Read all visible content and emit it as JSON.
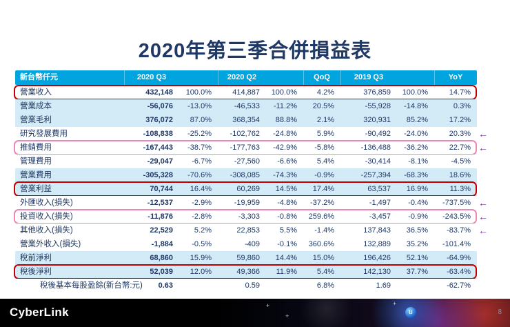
{
  "title": "2020年第三季合併損益表",
  "table": {
    "headers": [
      "新台幣仟元",
      "2020 Q3",
      "",
      "2020 Q2",
      "",
      "QoQ",
      "2019 Q3",
      "",
      "YoY"
    ],
    "rows": [
      {
        "label": "營業收入",
        "values": [
          "432,148",
          "100.0%",
          "414,887",
          "100.0%",
          "4.2%",
          "376,859",
          "100.0%",
          "14.7%"
        ],
        "shaded": false,
        "border": "red",
        "arrow": false,
        "indent": false
      },
      {
        "label": "營業成本",
        "values": [
          "-56,076",
          "-13.0%",
          "-46,533",
          "-11.2%",
          "20.5%",
          "-55,928",
          "-14.8%",
          "0.3%"
        ],
        "shaded": true,
        "border": null,
        "arrow": false,
        "indent": false
      },
      {
        "label": "營業毛利",
        "values": [
          "376,072",
          "87.0%",
          "368,354",
          "88.8%",
          "2.1%",
          "320,931",
          "85.2%",
          "17.2%"
        ],
        "shaded": true,
        "border": null,
        "arrow": false,
        "indent": false
      },
      {
        "label": "研究發展費用",
        "values": [
          "-108,838",
          "-25.2%",
          "-102,762",
          "-24.8%",
          "5.9%",
          "-90,492",
          "-24.0%",
          "20.3%"
        ],
        "shaded": false,
        "border": null,
        "arrow": true,
        "indent": false
      },
      {
        "label": "推銷費用",
        "values": [
          "-167,443",
          "-38.7%",
          "-177,763",
          "-42.9%",
          "-5.8%",
          "-136,488",
          "-36.2%",
          "22.7%"
        ],
        "shaded": false,
        "border": "pink",
        "arrow": true,
        "indent": false
      },
      {
        "label": "管理費用",
        "values": [
          "-29,047",
          "-6.7%",
          "-27,560",
          "-6.6%",
          "5.4%",
          "-30,414",
          "-8.1%",
          "-4.5%"
        ],
        "shaded": false,
        "border": null,
        "arrow": false,
        "indent": false
      },
      {
        "label": "營業費用",
        "values": [
          "-305,328",
          "-70.6%",
          "-308,085",
          "-74.3%",
          "-0.9%",
          "-257,394",
          "-68.3%",
          "18.6%"
        ],
        "shaded": true,
        "border": null,
        "arrow": false,
        "indent": false
      },
      {
        "label": "營業利益",
        "values": [
          "70,744",
          "16.4%",
          "60,269",
          "14.5%",
          "17.4%",
          "63,537",
          "16.9%",
          "11.3%"
        ],
        "shaded": true,
        "border": "red",
        "arrow": false,
        "indent": false
      },
      {
        "label": "外匯收入(損失)",
        "values": [
          "-12,537",
          "-2.9%",
          "-19,959",
          "-4.8%",
          "-37.2%",
          "-1,497",
          "-0.4%",
          "-737.5%"
        ],
        "shaded": false,
        "border": null,
        "arrow": true,
        "indent": false
      },
      {
        "label": "投資收入(損失)",
        "values": [
          "-11,876",
          "-2.8%",
          "-3,303",
          "-0.8%",
          "259.6%",
          "-3,457",
          "-0.9%",
          "-243.5%"
        ],
        "shaded": false,
        "border": "pink",
        "arrow": true,
        "indent": false
      },
      {
        "label": "其他收入(損失)",
        "values": [
          "22,529",
          "5.2%",
          "22,853",
          "5.5%",
          "-1.4%",
          "137,843",
          "36.5%",
          "-83.7%"
        ],
        "shaded": false,
        "border": null,
        "arrow": true,
        "indent": false
      },
      {
        "label": "營業外收入(損失)",
        "values": [
          "-1,884",
          "-0.5%",
          "-409",
          "-0.1%",
          "360.6%",
          "132,889",
          "35.2%",
          "-101.4%"
        ],
        "shaded": false,
        "border": null,
        "arrow": false,
        "indent": false
      },
      {
        "label": "稅前淨利",
        "values": [
          "68,860",
          "15.9%",
          "59,860",
          "14.4%",
          "15.0%",
          "196,426",
          "52.1%",
          "-64.9%"
        ],
        "shaded": true,
        "border": null,
        "arrow": false,
        "indent": false
      },
      {
        "label": "稅後淨利",
        "values": [
          "52,039",
          "12.0%",
          "49,366",
          "11.9%",
          "5.4%",
          "142,130",
          "37.7%",
          "-63.4%"
        ],
        "shaded": true,
        "border": "red",
        "arrow": false,
        "indent": false
      },
      {
        "label": "稅後基本每股盈餘(新台幣:元)",
        "values": [
          "0.63",
          "",
          "0.59",
          "",
          "6.8%",
          "1.69",
          "",
          "-62.7%"
        ],
        "shaded": false,
        "border": null,
        "arrow": false,
        "indent": true
      }
    ]
  },
  "footer": {
    "logo": "CyberLink",
    "page_number": "8"
  },
  "icons": {
    "left_arrow": "←",
    "plus": "+",
    "badge_letter": "u"
  },
  "colors": {
    "header_bg": "#00A4DF",
    "shaded_row": "#D3EBF7",
    "row_text": "#1F3864",
    "title_text": "#203864",
    "red_highlight": "#C00000",
    "pink_highlight": "#EE85B5",
    "arrow_purple": "#7030A0"
  }
}
